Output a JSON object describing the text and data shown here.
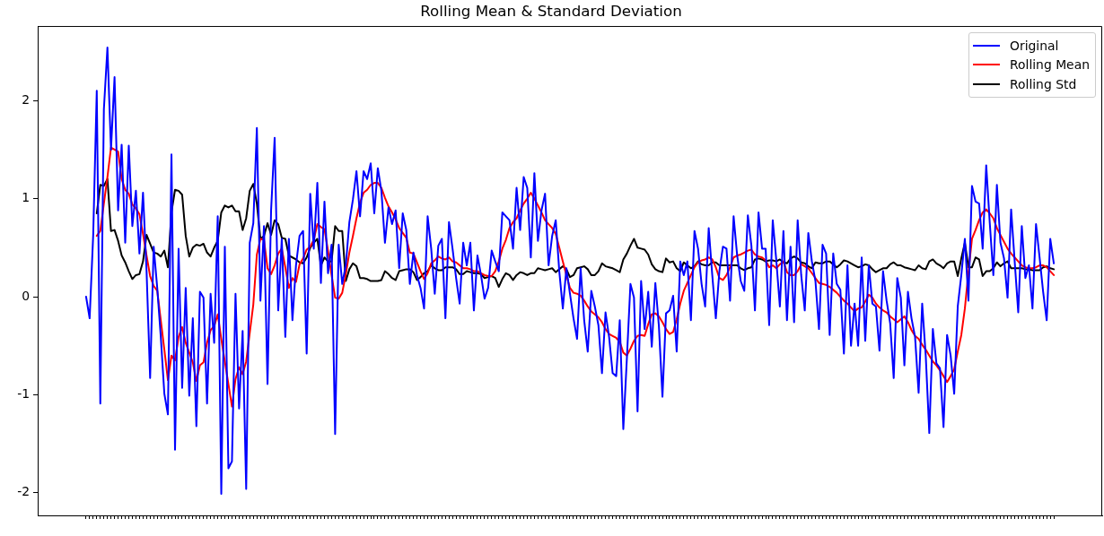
{
  "chart_data": {
    "type": "line",
    "title": "Rolling Mean & Standard Deviation",
    "categories": [
      null,
      null,
      null,
      null,
      null,
      null,
      null,
      null,
      null,
      null,
      null,
      null,
      null,
      null,
      null,
      null,
      null,
      null,
      null,
      null,
      null,
      null,
      null,
      null,
      null,
      null,
      null,
      null,
      null,
      null,
      null,
      null,
      null,
      null,
      null,
      null,
      null,
      null,
      null,
      null,
      null,
      null,
      null,
      null,
      null,
      null,
      null,
      null,
      null,
      null,
      null,
      null,
      null,
      null,
      null,
      null,
      null,
      null,
      null,
      null,
      null,
      null,
      null,
      null,
      null,
      null,
      null,
      null,
      null,
      null,
      null,
      null,
      null,
      null,
      null,
      null,
      null,
      null,
      null,
      null,
      null,
      null,
      null,
      null,
      null,
      null,
      null,
      null,
      null,
      null,
      null,
      null,
      null,
      null,
      null,
      null,
      null,
      null,
      null,
      null,
      null,
      null,
      null,
      null,
      null,
      null,
      null,
      null,
      null,
      null,
      null,
      null,
      null,
      null,
      null,
      null,
      null,
      null,
      null,
      null,
      null,
      null,
      null,
      null,
      null,
      null,
      null,
      null,
      null,
      null,
      null,
      null,
      null,
      null,
      null,
      null,
      null,
      null,
      null,
      null,
      null,
      null,
      null,
      null,
      null,
      null,
      null,
      null,
      null,
      null,
      null,
      null,
      null,
      null,
      null,
      null,
      null,
      null,
      null,
      null,
      null,
      null,
      null,
      null,
      null,
      null,
      null,
      null,
      null,
      null,
      null,
      null,
      null,
      null,
      null,
      null,
      null,
      null,
      null,
      null,
      null,
      null,
      null,
      null,
      null,
      null,
      null,
      null,
      null,
      null,
      null,
      null,
      null,
      null,
      null,
      null,
      null,
      null,
      null,
      null,
      null,
      null,
      null,
      null,
      null,
      null,
      null,
      null,
      null,
      null,
      null,
      null,
      null,
      null,
      null,
      null,
      null,
      null,
      null,
      null,
      null,
      null,
      null,
      null,
      null,
      null,
      null,
      null,
      null,
      null,
      null,
      null,
      null,
      null,
      null,
      null,
      null,
      null,
      null,
      null,
      null,
      null,
      null,
      null,
      null,
      null,
      null,
      null,
      null,
      null,
      null,
      null,
      null,
      null,
      null,
      null,
      null,
      null,
      null,
      null,
      null,
      null,
      null,
      null,
      null,
      null,
      null,
      null,
      null,
      null,
      null,
      null,
      null
    ],
    "series": [
      {
        "name": "Original",
        "color": "#0000ff",
        "values": [
          0,
          -0.22,
          0.63,
          2.1,
          -1.09,
          1.91,
          2.54,
          1.5,
          2.24,
          0.88,
          1.55,
          0.55,
          1.54,
          0.72,
          1.08,
          0.44,
          1.06,
          0.26,
          -0.83,
          0.51,
          0.09,
          -0.41,
          -0.99,
          -1.2,
          1.45,
          -1.56,
          0.49,
          -0.93,
          0.09,
          -1.01,
          -0.22,
          -1.32,
          0.05,
          -0.01,
          -1.09,
          0.03,
          -0.47,
          0.82,
          -2.01,
          0.51,
          -1.75,
          -1.68,
          0.03,
          -1.14,
          -0.35,
          -1.96,
          0.55,
          0.75,
          1.72,
          -0.04,
          0.72,
          -0.89,
          0.88,
          1.62,
          -0.14,
          0.59,
          -0.41,
          0.59,
          -0.24,
          0.32,
          0.62,
          0.67,
          -0.58,
          1.05,
          0.49,
          1.16,
          0.14,
          0.97,
          0.24,
          0.53,
          -1.4,
          0.53,
          0.13,
          0.32,
          0.76,
          0.99,
          1.28,
          0.82,
          1.28,
          1.2,
          1.36,
          0.85,
          1.31,
          1.08,
          0.55,
          0.91,
          0.74,
          0.88,
          0.29,
          0.85,
          0.68,
          0.13,
          0.45,
          0.22,
          0.09,
          -0.12,
          0.82,
          0.49,
          0.03,
          0.52,
          0.59,
          -0.22,
          0.76,
          0.49,
          0.19,
          -0.07,
          0.55,
          0.32,
          0.55,
          -0.14,
          0.42,
          0.22,
          -0.02,
          0.09,
          0.47,
          0.36,
          0.26,
          0.86,
          0.82,
          0.78,
          0.49,
          1.11,
          0.68,
          1.22,
          1.11,
          0.4,
          1.26,
          0.57,
          0.88,
          1.05,
          0.32,
          0.62,
          0.78,
          0.26,
          -0.12,
          0.29,
          0.03,
          -0.22,
          -0.43,
          0.29,
          -0.24,
          -0.56,
          0.06,
          -0.1,
          -0.29,
          -0.78,
          -0.16,
          -0.41,
          -0.78,
          -0.81,
          -0.24,
          -1.35,
          -0.63,
          0.13,
          -0.01,
          -1.17,
          0.16,
          -0.33,
          0.05,
          -0.51,
          0.14,
          -0.3,
          -1.02,
          -0.17,
          -0.14,
          0.01,
          -0.56,
          0.36,
          0.22,
          0.36,
          -0.24,
          0.67,
          0.49,
          0.13,
          -0.1,
          0.7,
          0.22,
          -0.22,
          0.26,
          0.51,
          0.49,
          -0.04,
          0.82,
          0.42,
          0.16,
          0.06,
          0.83,
          0.52,
          -0.14,
          0.86,
          0.49,
          0.49,
          -0.29,
          0.78,
          0.37,
          -0.1,
          0.67,
          -0.24,
          0.51,
          -0.26,
          0.78,
          0.22,
          -0.14,
          0.65,
          0.36,
          0.16,
          -0.33,
          0.53,
          0.44,
          -0.39,
          0.44,
          0.13,
          0.07,
          -0.58,
          0.32,
          -0.5,
          -0.07,
          -0.5,
          0.4,
          -0.45,
          0.32,
          -0.07,
          -0.1,
          -0.55,
          0.26,
          -0.04,
          -0.27,
          -0.83,
          0.19,
          -0.01,
          -0.7,
          0.05,
          -0.22,
          -0.41,
          -0.98,
          -0.07,
          -0.6,
          -1.39,
          -0.33,
          -0.68,
          -0.73,
          -1.33,
          -0.39,
          -0.6,
          -0.99,
          -0.1,
          0.22,
          0.59,
          -0.04,
          1.13,
          0.97,
          0.95,
          0.49,
          1.34,
          0.75,
          0.22,
          1.14,
          0.55,
          0.39,
          -0.01,
          0.89,
          0.36,
          -0.16,
          0.72,
          0.19,
          0.32,
          -0.12,
          0.74,
          0.4,
          0.05,
          -0.24,
          0.59,
          0.34
        ]
      },
      {
        "name": "Rolling Mean",
        "color": "#ff0000",
        "values": [
          null,
          null,
          null,
          0.62,
          0.67,
          0.95,
          1.22,
          1.52,
          1.5,
          1.48,
          1.2,
          1.09,
          1.05,
          0.94,
          0.9,
          0.84,
          0.64,
          0.42,
          0.21,
          0.11,
          0.06,
          -0.24,
          -0.54,
          -0.85,
          -0.6,
          -0.65,
          -0.41,
          -0.31,
          -0.47,
          -0.57,
          -0.67,
          -0.86,
          -0.7,
          -0.67,
          -0.47,
          -0.34,
          -0.3,
          -0.18,
          -0.43,
          -0.66,
          -0.89,
          -1.12,
          -0.84,
          -0.72,
          -0.79,
          -0.66,
          -0.37,
          -0.08,
          0.43,
          0.59,
          0.58,
          0.29,
          0.23,
          0.32,
          0.44,
          0.49,
          0.3,
          0.09,
          0.19,
          0.15,
          0.33,
          0.39,
          0.48,
          0.51,
          0.58,
          0.74,
          0.71,
          0.69,
          0.47,
          0.22,
          -0.01,
          -0.02,
          0.04,
          0.23,
          0.45,
          0.62,
          0.8,
          0.96,
          1.06,
          1.09,
          1.14,
          1.16,
          1.16,
          1.11,
          1.01,
          0.92,
          0.86,
          0.79,
          0.7,
          0.65,
          0.6,
          0.45,
          0.44,
          0.35,
          0.26,
          0.18,
          0.24,
          0.34,
          0.37,
          0.41,
          0.39,
          0.38,
          0.4,
          0.36,
          0.35,
          0.32,
          0.29,
          0.29,
          0.28,
          0.26,
          0.26,
          0.24,
          0.22,
          0.21,
          0.21,
          0.26,
          0.36,
          0.49,
          0.58,
          0.7,
          0.76,
          0.8,
          0.88,
          0.95,
          1.0,
          1.06,
          1.0,
          0.93,
          0.86,
          0.78,
          0.74,
          0.7,
          0.64,
          0.5,
          0.36,
          0.22,
          0.09,
          0.04,
          0.03,
          0.01,
          -0.04,
          -0.1,
          -0.15,
          -0.18,
          -0.21,
          -0.26,
          -0.33,
          -0.38,
          -0.4,
          -0.42,
          -0.46,
          -0.57,
          -0.6,
          -0.53,
          -0.45,
          -0.4,
          -0.39,
          -0.4,
          -0.28,
          -0.18,
          -0.17,
          -0.2,
          -0.26,
          -0.33,
          -0.38,
          -0.36,
          -0.23,
          -0.07,
          0.06,
          0.14,
          0.22,
          0.3,
          0.35,
          0.37,
          0.38,
          0.4,
          0.38,
          0.3,
          0.19,
          0.17,
          0.22,
          0.3,
          0.4,
          0.42,
          0.43,
          0.45,
          0.47,
          0.48,
          0.43,
          0.41,
          0.4,
          0.37,
          0.3,
          0.32,
          0.29,
          0.33,
          0.36,
          0.25,
          0.22,
          0.22,
          0.26,
          0.33,
          0.31,
          0.29,
          0.24,
          0.19,
          0.14,
          0.13,
          0.12,
          0.1,
          0.07,
          0.04,
          0,
          -0.04,
          -0.07,
          -0.11,
          -0.15,
          -0.12,
          -0.11,
          -0.05,
          0.02,
          -0.01,
          -0.07,
          -0.11,
          -0.14,
          -0.16,
          -0.2,
          -0.23,
          -0.26,
          -0.23,
          -0.2,
          -0.26,
          -0.34,
          -0.4,
          -0.43,
          -0.49,
          -0.54,
          -0.6,
          -0.66,
          -0.7,
          -0.75,
          -0.81,
          -0.87,
          -0.81,
          -0.74,
          -0.56,
          -0.39,
          -0.12,
          0.25,
          0.59,
          0.68,
          0.78,
          0.86,
          0.89,
          0.85,
          0.8,
          0.7,
          0.63,
          0.56,
          0.49,
          0.44,
          0.4,
          0.36,
          0.32,
          0.3,
          0.29,
          0.29,
          0.3,
          0.32,
          0.32,
          0.3,
          0.26,
          0.22
        ]
      },
      {
        "name": "Rolling Std",
        "color": "#000000",
        "values": [
          null,
          null,
          null,
          0.85,
          1.14,
          1.13,
          1.2,
          0.67,
          0.68,
          0.57,
          0.42,
          0.35,
          0.26,
          0.18,
          0.22,
          0.23,
          0.36,
          0.63,
          0.54,
          0.45,
          0.44,
          0.41,
          0.47,
          0.3,
          0.86,
          1.09,
          1.08,
          1.04,
          0.62,
          0.41,
          0.5,
          0.53,
          0.52,
          0.54,
          0.45,
          0.41,
          0.5,
          0.57,
          0.86,
          0.93,
          0.91,
          0.93,
          0.87,
          0.87,
          0.68,
          0.8,
          1.08,
          1.15,
          0.95,
          0.59,
          0.62,
          0.75,
          0.63,
          0.78,
          0.74,
          0.6,
          0.59,
          0.42,
          0.4,
          0.38,
          0.35,
          0.34,
          0.4,
          0.5,
          0.55,
          0.59,
          0.32,
          0.4,
          0.36,
          0.36,
          0.72,
          0.67,
          0.67,
          0.16,
          0.28,
          0.34,
          0.31,
          0.19,
          0.19,
          0.18,
          0.16,
          0.16,
          0.16,
          0.17,
          0.26,
          0.23,
          0.19,
          0.17,
          0.26,
          0.27,
          0.28,
          0.28,
          0.25,
          0.17,
          0.2,
          0.24,
          0.26,
          0.32,
          0.29,
          0.27,
          0.27,
          0.3,
          0.3,
          0.3,
          0.28,
          0.23,
          0.23,
          0.26,
          0.25,
          0.24,
          0.24,
          0.23,
          0.19,
          0.2,
          0.21,
          0.19,
          0.1,
          0.18,
          0.24,
          0.22,
          0.17,
          0.22,
          0.25,
          0.24,
          0.22,
          0.24,
          0.24,
          0.29,
          0.28,
          0.27,
          0.28,
          0.29,
          0.25,
          0.28,
          0.31,
          0.28,
          0.2,
          0.22,
          0.29,
          0.3,
          0.31,
          0.28,
          0.22,
          0.22,
          0.26,
          0.34,
          0.31,
          0.3,
          0.29,
          0.27,
          0.25,
          0.38,
          0.44,
          0.52,
          0.59,
          0.5,
          0.49,
          0.48,
          0.43,
          0.33,
          0.28,
          0.26,
          0.25,
          0.39,
          0.35,
          0.36,
          0.29,
          0.26,
          0.35,
          0.32,
          0.29,
          0.31,
          0.36,
          0.33,
          0.32,
          0.32,
          0.35,
          0.35,
          0.32,
          0.32,
          0.32,
          0.32,
          0.32,
          0.32,
          0.29,
          0.27,
          0.29,
          0.3,
          0.38,
          0.39,
          0.38,
          0.36,
          0.37,
          0.37,
          0.36,
          0.38,
          0.35,
          0.34,
          0.39,
          0.41,
          0.39,
          0.35,
          0.34,
          0.31,
          0.29,
          0.35,
          0.34,
          0.34,
          0.36,
          0.36,
          0.33,
          0.3,
          0.33,
          0.37,
          0.36,
          0.34,
          0.32,
          0.3,
          0.31,
          0.33,
          0.32,
          0.28,
          0.25,
          0.27,
          0.29,
          0.29,
          0.33,
          0.35,
          0.32,
          0.32,
          0.3,
          0.29,
          0.28,
          0.27,
          0.32,
          0.29,
          0.28,
          0.36,
          0.38,
          0.34,
          0.32,
          0.29,
          0.34,
          0.36,
          0.36,
          0.21,
          0.39,
          0.55,
          0.3,
          0.3,
          0.4,
          0.38,
          0.21,
          0.26,
          0.26,
          0.29,
          0.35,
          0.31,
          0.34,
          0.36,
          0.29,
          0.29,
          0.29,
          0.29,
          0.28,
          0.28,
          0.27,
          0.27,
          0.27,
          0.3,
          0.31,
          0.29,
          0.28
        ]
      }
    ],
    "ylim": [
      -2.23,
      2.76
    ],
    "yticks": [
      -2,
      -1,
      0,
      1,
      2
    ],
    "legend": "top right"
  }
}
